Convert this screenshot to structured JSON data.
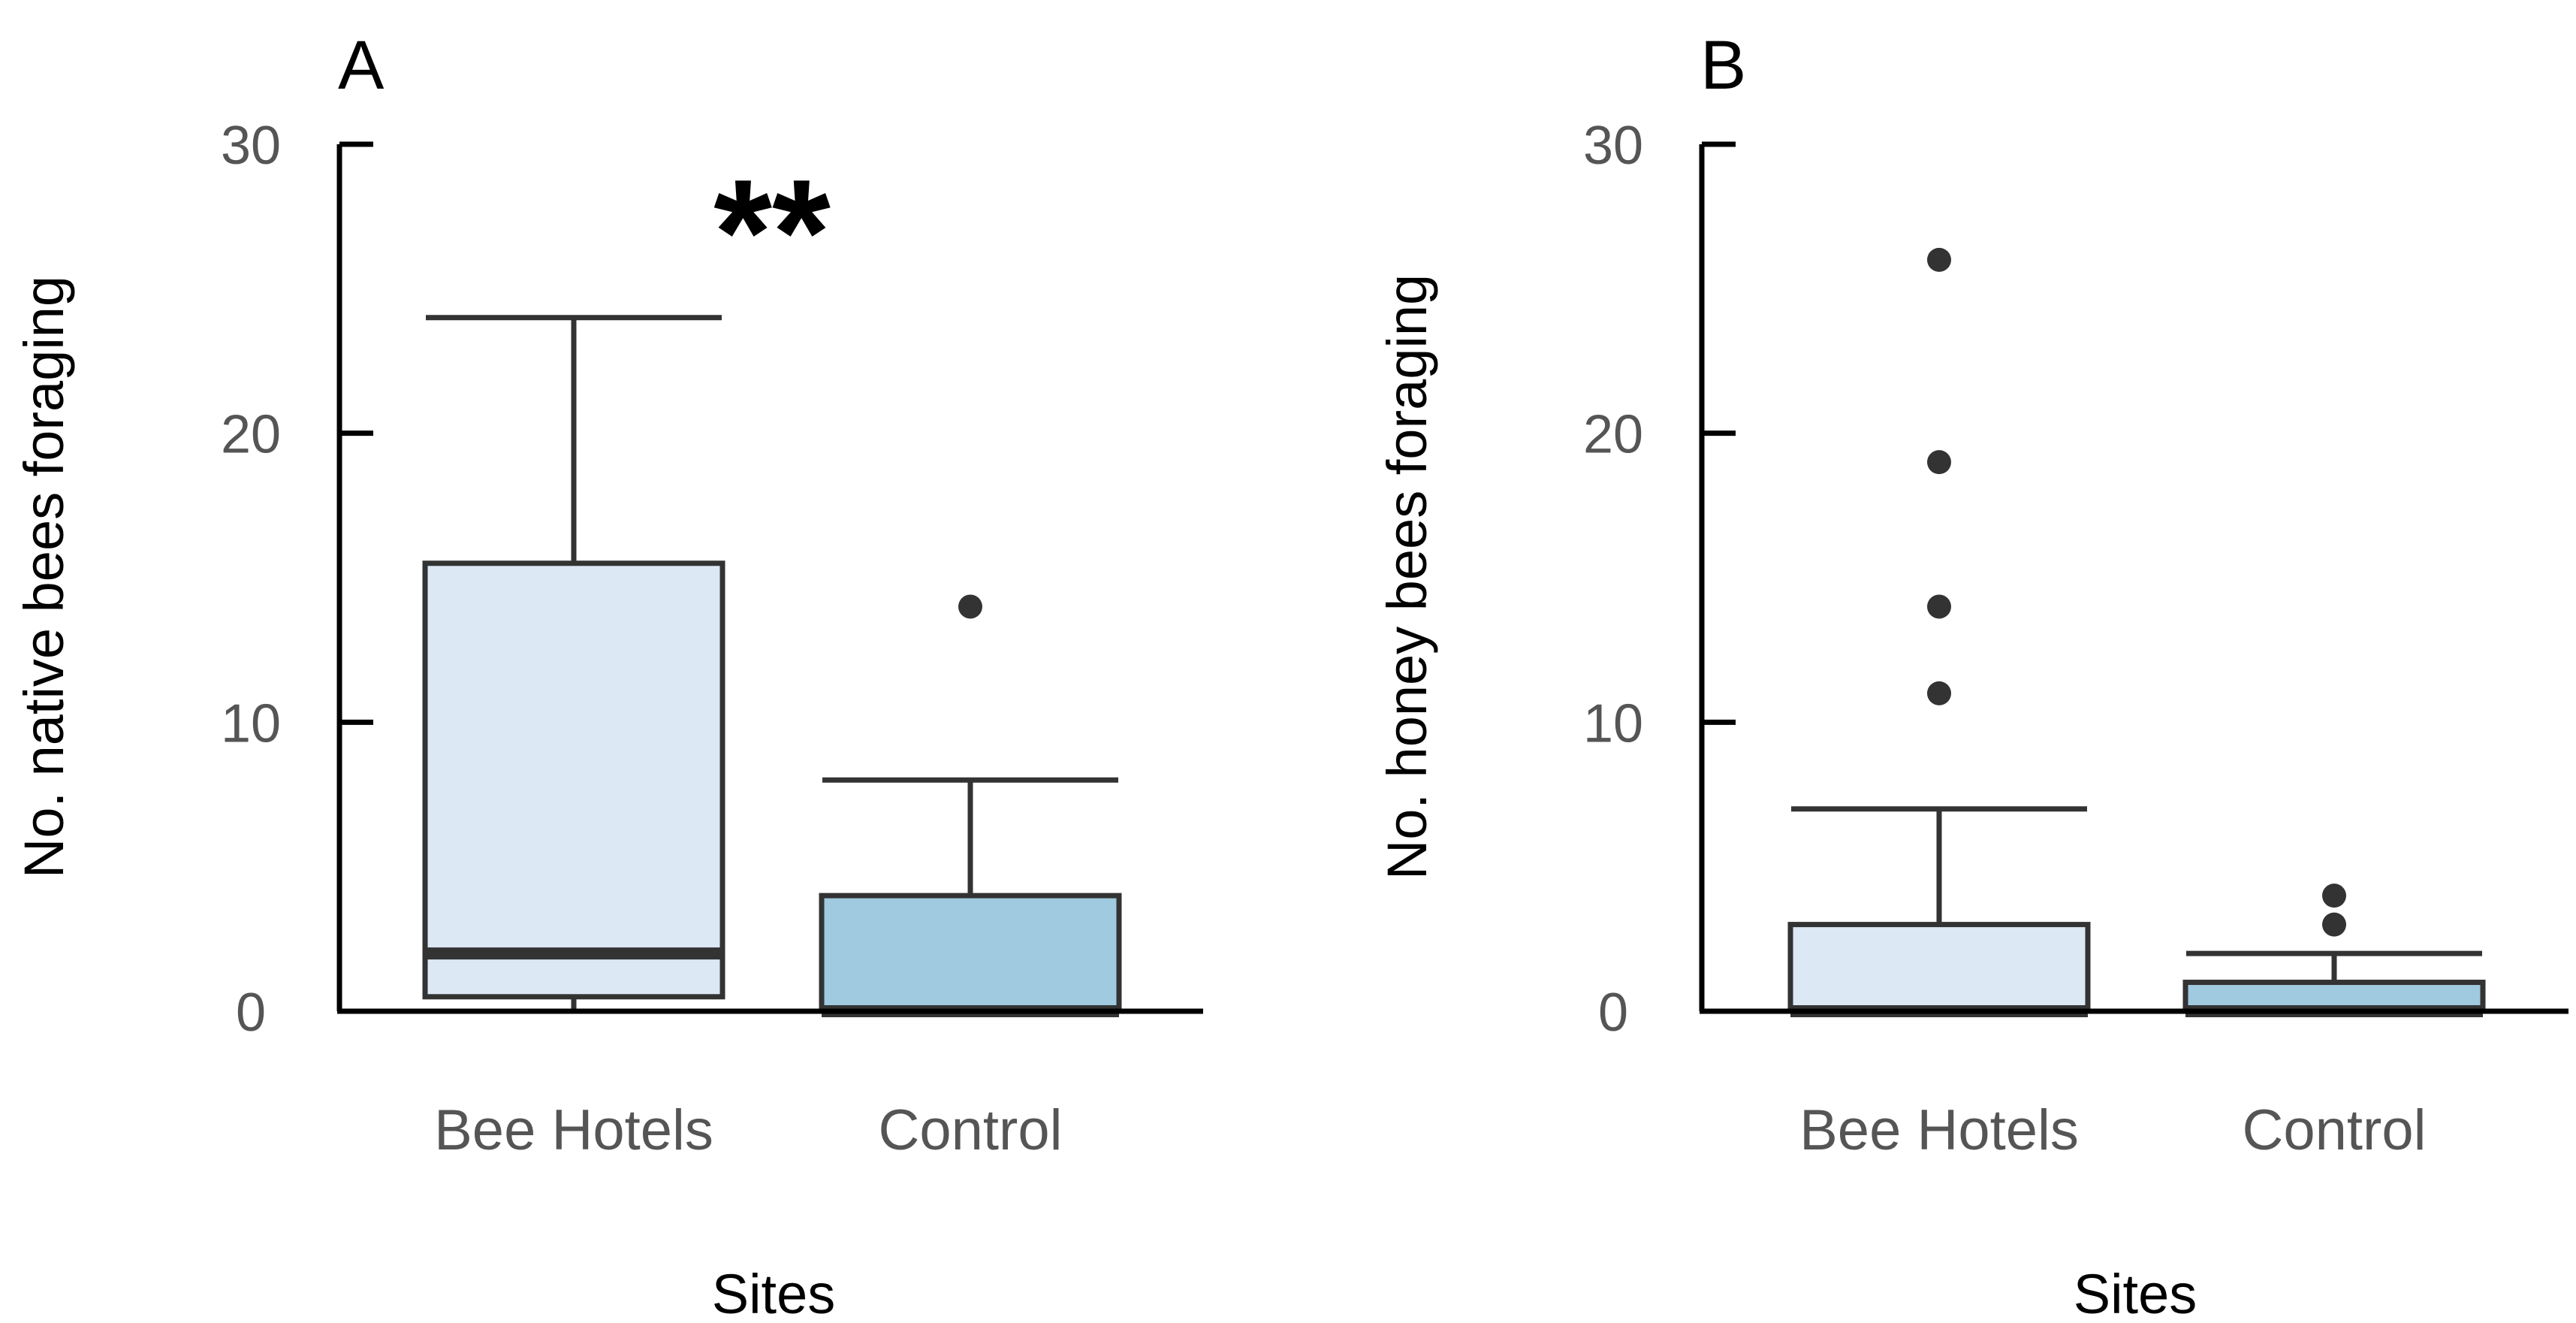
{
  "chart_data": [
    {
      "type": "boxplot",
      "panel": "A",
      "annotation": "**",
      "xlabel": "Sites",
      "ylabel": "No. native bees foraging",
      "ylim": [
        0,
        30
      ],
      "yticks": [
        0,
        10,
        20,
        30
      ],
      "categories": [
        "Bee Hotels",
        "Control"
      ],
      "boxes": [
        {
          "category": "Bee Hotels",
          "min": 0,
          "q1": 0.5,
          "median": 2,
          "q3": 15.5,
          "max": 24,
          "outliers": [],
          "color": "#dde8f5"
        },
        {
          "category": "Control",
          "min": 0,
          "q1": 0,
          "median": 0,
          "q3": 4,
          "max": 8,
          "outliers": [
            14
          ],
          "color": "#9fcae0"
        }
      ]
    },
    {
      "type": "boxplot",
      "panel": "B",
      "annotation": "",
      "xlabel": "Sites",
      "ylabel": "No. honey bees foraging",
      "ylim": [
        0,
        30
      ],
      "yticks": [
        0,
        10,
        20,
        30
      ],
      "categories": [
        "Bee Hotels",
        "Control"
      ],
      "boxes": [
        {
          "category": "Bee Hotels",
          "min": 0,
          "q1": 0,
          "median": 0,
          "q3": 3,
          "max": 7,
          "outliers": [
            11,
            14,
            19,
            26
          ],
          "color": "#dde8f5"
        },
        {
          "category": "Control",
          "min": 0,
          "q1": 0,
          "median": 0,
          "q3": 1,
          "max": 2,
          "outliers": [
            3,
            4
          ],
          "color": "#9fcae0"
        }
      ]
    }
  ]
}
